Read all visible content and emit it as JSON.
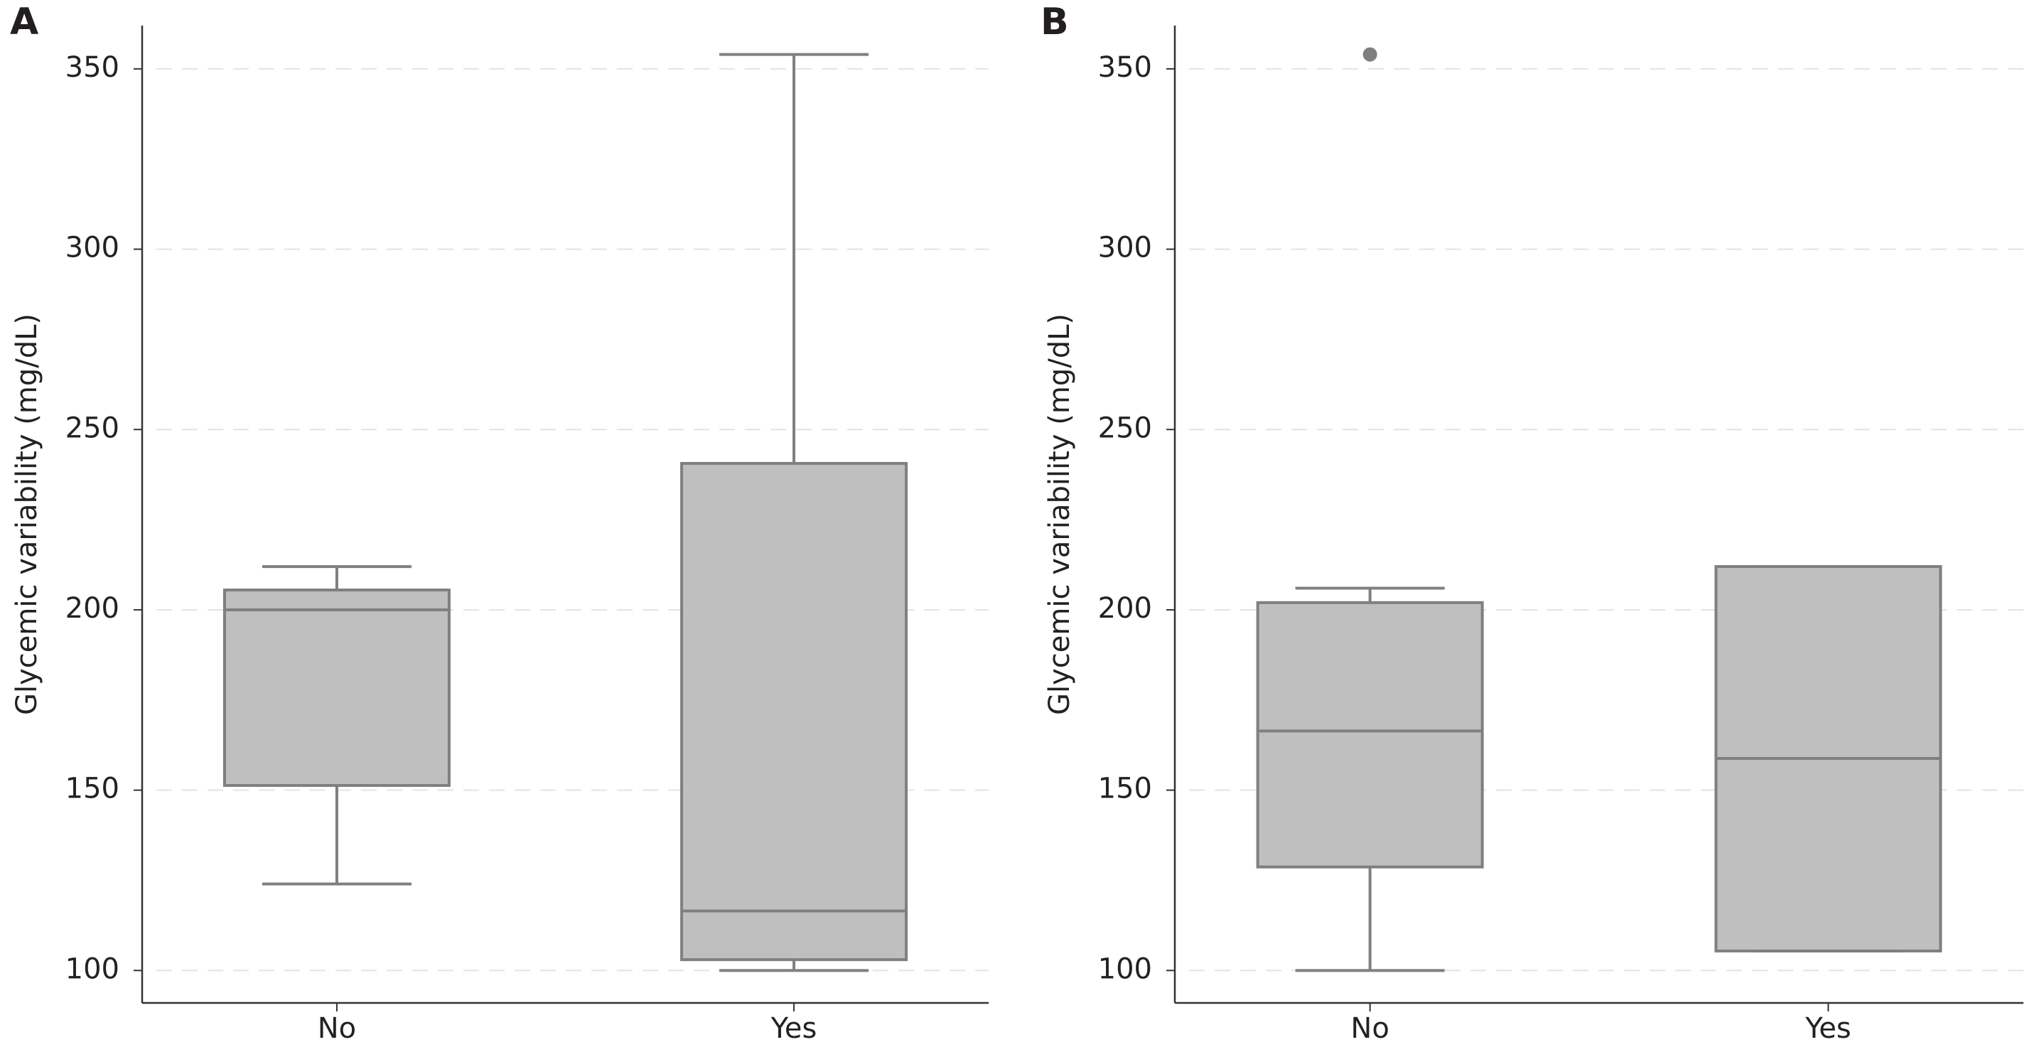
{
  "chart_data": [
    {
      "type": "box",
      "panel": "A",
      "y_label": "Glycemic variability (mg/dL)",
      "categories": [
        "No",
        "Yes"
      ],
      "boxes": [
        {
          "min": 124,
          "q1": 151.3,
          "median": 200,
          "q3": 205.5,
          "max": 212,
          "outliers": []
        },
        {
          "min": 100,
          "q1": 103,
          "median": 116.5,
          "q3": 240.6,
          "max": 354,
          "outliers": []
        }
      ],
      "color": "#bfbfbf",
      "line_color": "#7f7f7f",
      "ylim": [
        91,
        362
      ],
      "yticks": [
        100,
        150,
        200,
        250,
        300,
        350
      ],
      "grid": true
    },
    {
      "type": "box",
      "panel": "B",
      "y_label": "Glycemic variability (mg/dL)",
      "categories": [
        "No",
        "Yes"
      ],
      "boxes": [
        {
          "min": 100,
          "q1": 128.7,
          "median": 166.4,
          "q3": 202,
          "max": 206,
          "outliers": [
            354
          ]
        },
        {
          "min": 105.4,
          "q1": 105.4,
          "median": 158.8,
          "q3": 212,
          "max": 212,
          "outliers": []
        }
      ],
      "color": "#bfbfbf",
      "line_color": "#7f7f7f",
      "ylim": [
        91,
        362
      ],
      "yticks": [
        100,
        150,
        200,
        250,
        300,
        350
      ],
      "grid": true
    }
  ]
}
